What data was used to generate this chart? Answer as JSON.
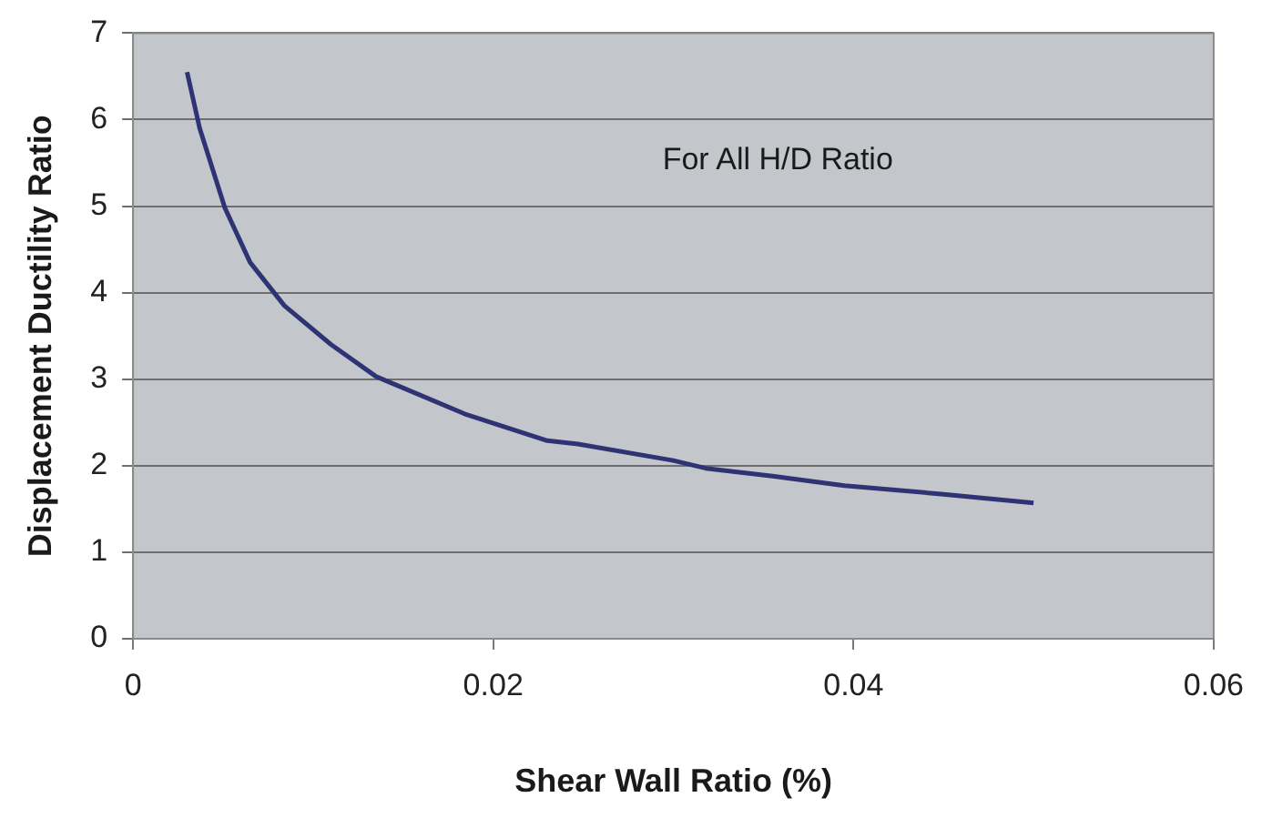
{
  "chart_data": {
    "type": "line",
    "xlabel": "Shear Wall Ratio (%)",
    "ylabel": "Displacement Ductility Ratio",
    "annotations": [
      "For All H/D Ratio"
    ],
    "x": [
      0.003,
      0.0037,
      0.0051,
      0.0065,
      0.0084,
      0.011,
      0.0135,
      0.0184,
      0.023,
      0.0247,
      0.03,
      0.0318,
      0.0355,
      0.0395,
      0.045,
      0.05
    ],
    "series": [
      {
        "color": "#2e3473",
        "values": [
          6.55,
          5.9,
          4.98,
          4.35,
          3.85,
          3.4,
          3.03,
          2.6,
          2.29,
          2.25,
          2.06,
          1.97,
          1.88,
          1.77,
          1.67,
          1.57
        ]
      }
    ],
    "xlim": [
      0,
      0.06
    ],
    "xticks": [
      0,
      0.02,
      0.04,
      0.06
    ],
    "ylim": [
      0,
      7
    ],
    "yticks": [
      0,
      1,
      2,
      3,
      4,
      5,
      6,
      7
    ],
    "grid": "y",
    "legend": false,
    "marker": "none",
    "line_style": "solid"
  }
}
